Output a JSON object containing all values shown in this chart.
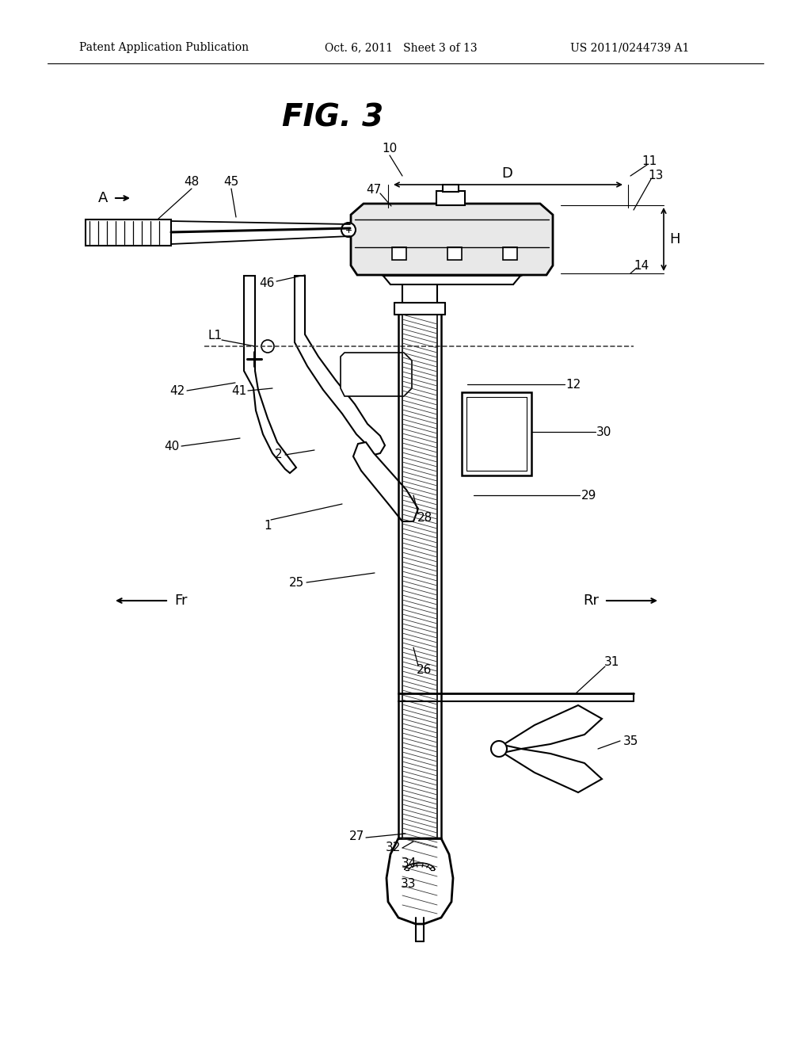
{
  "background_color": "#ffffff",
  "header_left": "Patent Application Publication",
  "header_center": "Oct. 6, 2011   Sheet 3 of 13",
  "header_right": "US 2011/0244739 A1",
  "figure_title": "FIG. 3"
}
